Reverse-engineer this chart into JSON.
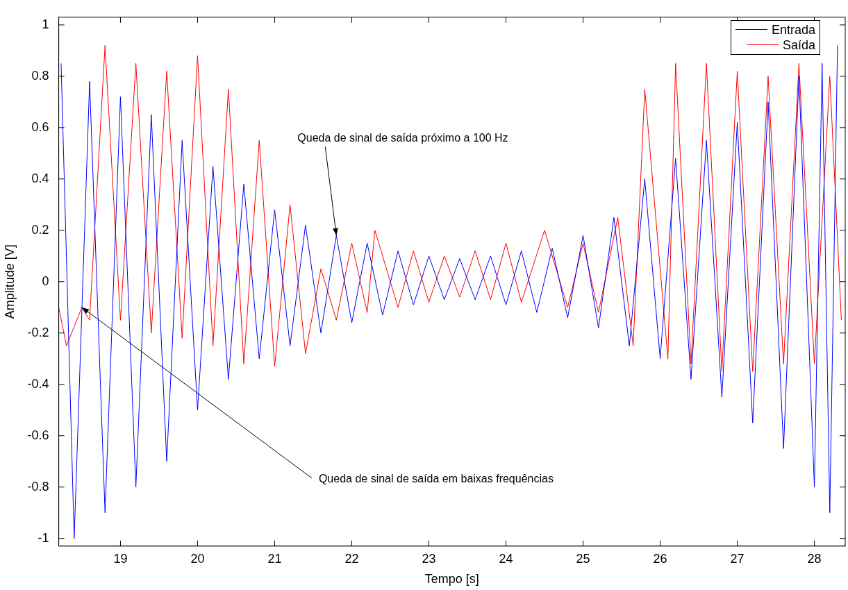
{
  "chart_data": {
    "type": "line",
    "xlabel": "Tempo [s]",
    "ylabel": "Amplitude [V]",
    "xlim": [
      18.2,
      28.4
    ],
    "xticks": [
      19,
      20,
      21,
      22,
      23,
      24,
      25,
      26,
      27,
      28
    ],
    "ylim": [
      -1.03,
      1.03
    ],
    "yticks": [
      -1,
      -0.8,
      -0.6,
      -0.4,
      -0.2,
      0,
      0.2,
      0.4,
      0.6,
      0.8,
      1
    ],
    "grid": false,
    "legend": "top right",
    "marker": "none",
    "line_style": "solid",
    "series": [
      {
        "name": "Entrada",
        "color": "#0000ff",
        "x": [
          18.23,
          18.4,
          18.6,
          18.8,
          19.0,
          19.2,
          19.4,
          19.6,
          19.8,
          20.0,
          20.2,
          20.4,
          20.6,
          20.8,
          21.0,
          21.2,
          21.4,
          21.6,
          21.8,
          22.0,
          22.2,
          22.4,
          22.6,
          22.8,
          23.0,
          23.2,
          23.4,
          23.6,
          23.8,
          24.0,
          24.2,
          24.4,
          24.6,
          24.8,
          25.0,
          25.2,
          25.4,
          25.6,
          25.8,
          26.0,
          26.2,
          26.4,
          26.6,
          26.8,
          27.0,
          27.2,
          27.4,
          27.6,
          27.8,
          28.0,
          28.1,
          28.2,
          28.3
        ],
        "values": [
          0.85,
          -1.0,
          0.78,
          -0.9,
          0.72,
          -0.8,
          0.65,
          -0.7,
          0.55,
          -0.5,
          0.45,
          -0.38,
          0.38,
          -0.3,
          0.28,
          -0.25,
          0.22,
          -0.2,
          0.18,
          -0.16,
          0.15,
          -0.13,
          0.12,
          -0.09,
          0.1,
          -0.07,
          0.09,
          -0.07,
          0.1,
          -0.09,
          0.12,
          -0.12,
          0.13,
          -0.14,
          0.18,
          -0.18,
          0.25,
          -0.25,
          0.4,
          -0.3,
          0.48,
          -0.38,
          0.55,
          -0.45,
          0.62,
          -0.55,
          0.7,
          -0.65,
          0.8,
          -0.8,
          0.85,
          -0.9,
          0.92
        ]
      },
      {
        "name": "Saída",
        "color": "#ff0000",
        "x": [
          18.2,
          18.3,
          18.5,
          18.6,
          18.8,
          19.0,
          19.2,
          19.4,
          19.6,
          19.8,
          20.0,
          20.2,
          20.4,
          20.6,
          20.8,
          21.0,
          21.2,
          21.4,
          21.6,
          21.8,
          22.0,
          22.2,
          22.3,
          22.6,
          22.8,
          23.0,
          23.2,
          23.4,
          23.6,
          23.8,
          24.0,
          24.2,
          24.5,
          24.8,
          25.0,
          25.2,
          25.45,
          25.65,
          25.8,
          26.1,
          26.2,
          26.4,
          26.6,
          26.8,
          27.0,
          27.2,
          27.4,
          27.6,
          27.8,
          28.0,
          28.2,
          28.35
        ],
        "values": [
          -0.1,
          -0.25,
          -0.1,
          -0.15,
          0.92,
          -0.15,
          0.85,
          -0.2,
          0.82,
          -0.22,
          0.88,
          -0.25,
          0.75,
          -0.32,
          0.55,
          -0.33,
          0.3,
          -0.28,
          0.05,
          -0.15,
          0.15,
          -0.12,
          0.2,
          -0.1,
          0.12,
          -0.08,
          0.1,
          -0.06,
          0.12,
          -0.07,
          0.15,
          -0.08,
          0.2,
          -0.1,
          0.15,
          -0.12,
          0.25,
          -0.25,
          0.75,
          -0.3,
          0.85,
          -0.32,
          0.85,
          -0.35,
          0.82,
          -0.35,
          0.8,
          -0.32,
          0.85,
          -0.32,
          0.8,
          -0.15
        ]
      }
    ],
    "annotations": [
      {
        "text": "Queda de sinal de saída próximo a 100 Hz",
        "x": 21.8,
        "y": 0.18
      },
      {
        "text": "Queda de sinal de saída em baixas frequências",
        "x": 18.5,
        "y": -0.1
      }
    ]
  }
}
